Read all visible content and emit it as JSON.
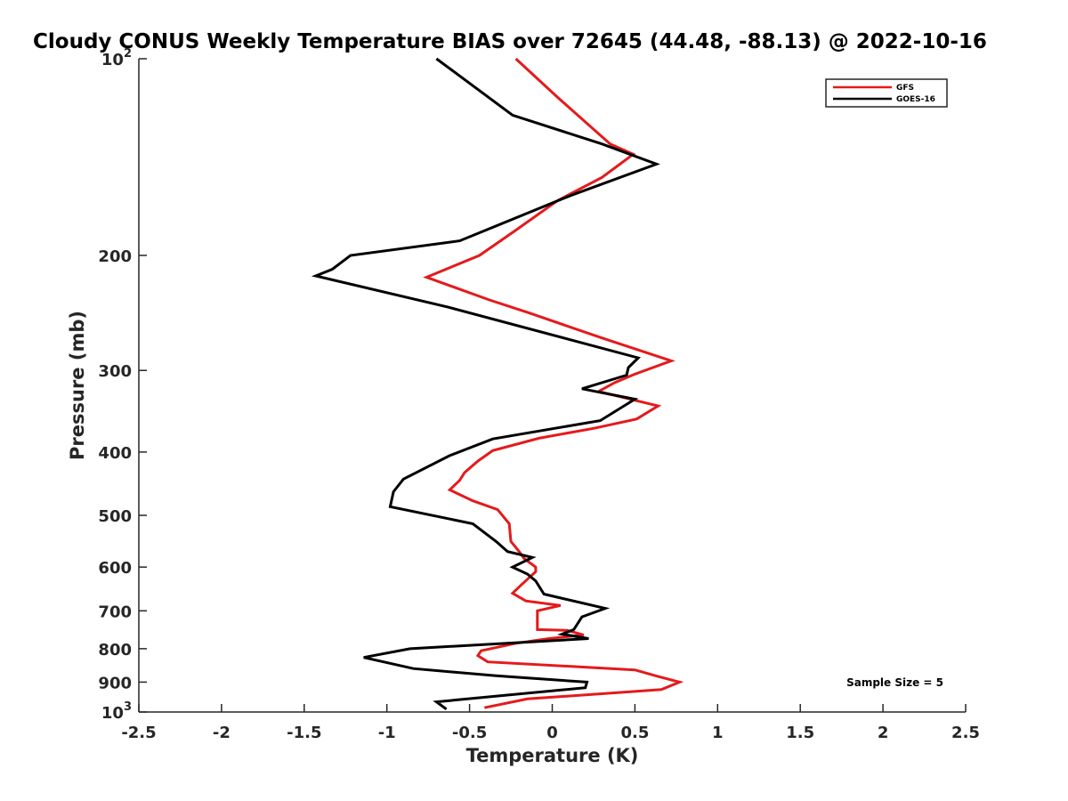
{
  "chart_data": {
    "type": "line",
    "title": "Cloudy CONUS Weekly Temperature BIAS over 72645 (44.48, -88.13) @ 2022-10-16",
    "xlabel": "Temperature (K)",
    "ylabel": "Pressure (mb)",
    "xlim": [
      -2.5,
      2.5
    ],
    "ylim": [
      100,
      1000
    ],
    "y_scale": "log",
    "y_reversed": true,
    "grid": false,
    "legend_position": "top-right",
    "x_ticks": [
      -2.5,
      -2,
      -1.5,
      -1,
      -0.5,
      0,
      0.5,
      1,
      1.5,
      2,
      2.5
    ],
    "x_tick_labels": [
      "-2.5",
      "-2",
      "-1.5",
      "-1",
      "-0.5",
      "0",
      "0.5",
      "1",
      "1.5",
      "2",
      "2.5"
    ],
    "y_ticks": [
      {
        "value": 100,
        "base": "10",
        "exp": "2"
      },
      {
        "value": 200,
        "base": "200",
        "exp": ""
      },
      {
        "value": 300,
        "base": "300",
        "exp": ""
      },
      {
        "value": 400,
        "base": "400",
        "exp": ""
      },
      {
        "value": 500,
        "base": "500",
        "exp": ""
      },
      {
        "value": 600,
        "base": "600",
        "exp": ""
      },
      {
        "value": 700,
        "base": "700",
        "exp": ""
      },
      {
        "value": 800,
        "base": "800",
        "exp": ""
      },
      {
        "value": 900,
        "base": "900",
        "exp": ""
      },
      {
        "value": 1000,
        "base": "10",
        "exp": "3"
      }
    ],
    "annotation": "Sample Size = 5",
    "series": [
      {
        "name": "GFS",
        "color": "#e41a1c",
        "points": [
          [
            -0.22,
            100
          ],
          [
            0.04,
            115
          ],
          [
            0.35,
            135
          ],
          [
            0.49,
            140
          ],
          [
            0.3,
            152
          ],
          [
            0.03,
            165
          ],
          [
            -0.22,
            183
          ],
          [
            -0.44,
            200
          ],
          [
            -0.76,
            216
          ],
          [
            -0.38,
            234
          ],
          [
            -0.14,
            245
          ],
          [
            0.29,
            267
          ],
          [
            0.72,
            290
          ],
          [
            0.5,
            304
          ],
          [
            0.38,
            313
          ],
          [
            0.28,
            323
          ],
          [
            0.64,
            340
          ],
          [
            0.51,
            356
          ],
          [
            0.25,
            368
          ],
          [
            -0.08,
            381
          ],
          [
            -0.36,
            398
          ],
          [
            -0.45,
            413
          ],
          [
            -0.53,
            430
          ],
          [
            -0.56,
            442
          ],
          [
            -0.62,
            457
          ],
          [
            -0.48,
            475
          ],
          [
            -0.33,
            490
          ],
          [
            -0.26,
            515
          ],
          [
            -0.25,
            548
          ],
          [
            -0.2,
            568
          ],
          [
            -0.17,
            582
          ],
          [
            -0.1,
            600
          ],
          [
            -0.1,
            610
          ],
          [
            -0.19,
            640
          ],
          [
            -0.24,
            658
          ],
          [
            -0.16,
            676
          ],
          [
            0.05,
            687
          ],
          [
            -0.09,
            700
          ],
          [
            -0.09,
            725
          ],
          [
            -0.09,
            748
          ],
          [
            0.09,
            750
          ],
          [
            0.19,
            762
          ],
          [
            -0.02,
            772
          ],
          [
            -0.22,
            785
          ],
          [
            -0.43,
            806
          ],
          [
            -0.45,
            820
          ],
          [
            -0.39,
            838
          ],
          [
            0.5,
            862
          ],
          [
            0.63,
            881
          ],
          [
            0.77,
            900
          ],
          [
            0.66,
            924
          ],
          [
            -0.15,
            955
          ],
          [
            -0.41,
            985
          ]
        ]
      },
      {
        "name": "GOES-16",
        "color": "#000000",
        "points": [
          [
            -0.7,
            100
          ],
          [
            -0.24,
            122
          ],
          [
            0.3,
            135
          ],
          [
            0.63,
            145
          ],
          [
            0.11,
            162
          ],
          [
            -0.56,
            190
          ],
          [
            -1.22,
            200
          ],
          [
            -1.33,
            210
          ],
          [
            -1.43,
            215
          ],
          [
            -0.63,
            240
          ],
          [
            0.52,
            287
          ],
          [
            0.46,
            297
          ],
          [
            0.45,
            305
          ],
          [
            0.18,
            320
          ],
          [
            0.5,
            332
          ],
          [
            0.29,
            358
          ],
          [
            -0.36,
            382
          ],
          [
            -0.62,
            405
          ],
          [
            -0.9,
            440
          ],
          [
            -0.96,
            460
          ],
          [
            -0.98,
            485
          ],
          [
            -0.48,
            515
          ],
          [
            -0.34,
            548
          ],
          [
            -0.27,
            568
          ],
          [
            -0.12,
            580
          ],
          [
            -0.24,
            600
          ],
          [
            -0.15,
            615
          ],
          [
            -0.1,
            630
          ],
          [
            -0.05,
            660
          ],
          [
            0.32,
            694
          ],
          [
            0.18,
            715
          ],
          [
            0.13,
            748
          ],
          [
            0.06,
            760
          ],
          [
            0.22,
            772
          ],
          [
            -0.86,
            800
          ],
          [
            -1.14,
            825
          ],
          [
            -0.84,
            858
          ],
          [
            -0.34,
            880
          ],
          [
            0.21,
            900
          ],
          [
            0.2,
            918
          ],
          [
            -0.7,
            965
          ],
          [
            -0.64,
            990
          ]
        ]
      }
    ]
  },
  "legend": {
    "items": [
      {
        "label": "GFS",
        "color": "#e41a1c"
      },
      {
        "label": "GOES-16",
        "color": "#000000"
      }
    ]
  }
}
